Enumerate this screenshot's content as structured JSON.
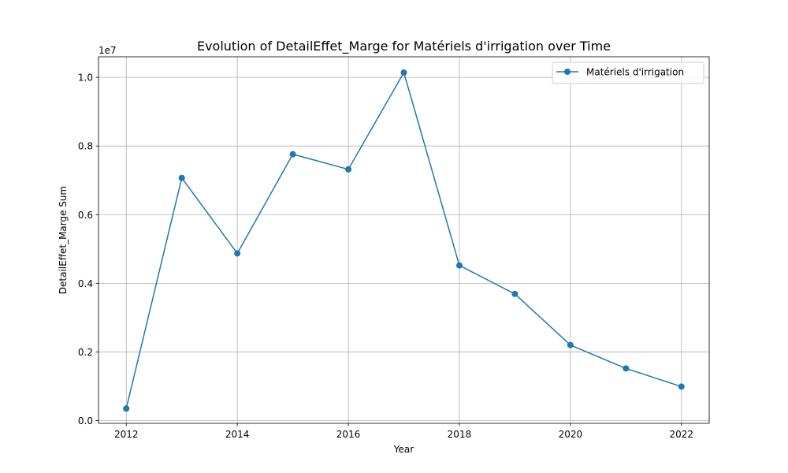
{
  "chart_data": {
    "type": "line",
    "title": "Evolution of DetailEffet_Marge for Matériels d'irrigation over Time",
    "xlabel": "Year",
    "ylabel": "DetailEffet_Marge Sum",
    "y_exponent_label": "1e7",
    "x": [
      2012,
      2013,
      2014,
      2015,
      2016,
      2017,
      2018,
      2019,
      2020,
      2021,
      2022
    ],
    "series": [
      {
        "name": "Matériels d'irrigation",
        "color": "#1f77b4",
        "marker": "circle",
        "values": [
          350000,
          7070000,
          4870000,
          7760000,
          7320000,
          10140000,
          4520000,
          3690000,
          2200000,
          1520000,
          990000
        ]
      }
    ],
    "xlim": [
      2011.5,
      2022.5
    ],
    "ylim": [
      -80000,
      10600000
    ],
    "x_ticks": [
      2012,
      2014,
      2016,
      2018,
      2020,
      2022
    ],
    "x_tick_labels": [
      "2012",
      "2014",
      "2016",
      "2018",
      "2020",
      "2022"
    ],
    "y_ticks": [
      0,
      2000000,
      4000000,
      6000000,
      8000000,
      10000000
    ],
    "y_tick_labels": [
      "0.0",
      "0.2",
      "0.4",
      "0.6",
      "0.8",
      "1.0"
    ],
    "grid": true,
    "legend_position": "top-right"
  }
}
